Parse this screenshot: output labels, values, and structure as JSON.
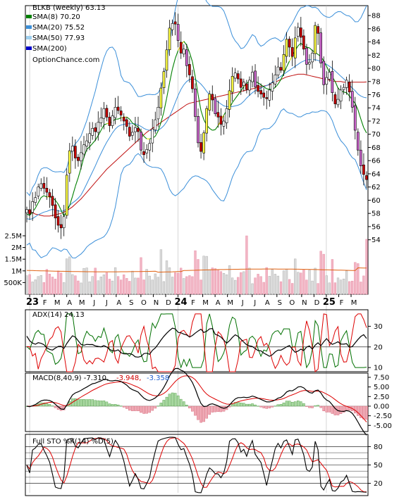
{
  "chart_data": [
    {
      "type": "candlestick",
      "panel": "price",
      "title": "BLKB (weekly) 63.13",
      "watermark": "OptionChance.com",
      "legend": [
        {
          "label": "SMA(8) 70.20",
          "color": "#008000"
        },
        {
          "label": "SMA(20) 75.52",
          "color": "#3b8fd9"
        },
        {
          "label": "SMA(50) 77.93",
          "color": "#9fd0ef"
        },
        {
          "label": "SMA(200)",
          "color": "#0000cc"
        }
      ],
      "y_ticks": [
        "88",
        "86",
        "84",
        "82",
        "80",
        "78",
        "76",
        "74",
        "72",
        "70",
        "68",
        "66",
        "64",
        "62",
        "60",
        "58",
        "56",
        "54"
      ],
      "ylim": [
        53,
        89.5
      ],
      "x_ticks": [
        {
          "label": "23",
          "bold": true
        },
        {
          "label": "F"
        },
        {
          "label": "M"
        },
        {
          "label": "A"
        },
        {
          "label": "M"
        },
        {
          "label": "J"
        },
        {
          "label": "J"
        },
        {
          "label": "A"
        },
        {
          "label": "S"
        },
        {
          "label": "O"
        },
        {
          "label": "N"
        },
        {
          "label": "D"
        },
        {
          "label": "24",
          "bold": true
        },
        {
          "label": "F"
        },
        {
          "label": "M"
        },
        {
          "label": "A"
        },
        {
          "label": "M"
        },
        {
          "label": "J"
        },
        {
          "label": "J"
        },
        {
          "label": "A"
        },
        {
          "label": "S"
        },
        {
          "label": "O"
        },
        {
          "label": "N"
        },
        {
          "label": "D"
        },
        {
          "label": "25",
          "bold": true
        },
        {
          "label": "F"
        },
        {
          "label": "M"
        }
      ],
      "close": [
        58.6,
        57.9,
        59.8,
        60.4,
        62.0,
        62.5,
        61.8,
        61.2,
        60.5,
        59.2,
        57.3,
        56.2,
        55.8,
        57.5,
        63.8,
        67.5,
        68.2,
        66.4,
        66.0,
        67.2,
        68.4,
        69.0,
        70.1,
        70.9,
        70.4,
        71.8,
        72.5,
        73.9,
        72.6,
        71.3,
        72.8,
        74.1,
        73.6,
        72.9,
        72.0,
        71.2,
        69.7,
        70.3,
        71.0,
        70.4,
        67.6,
        66.9,
        67.7,
        68.6,
        70.8,
        72.2,
        74.1,
        77.0,
        79.5,
        82.8,
        86.1,
        86.8,
        86.7,
        84.2,
        82.3,
        82.9,
        80.4,
        79.0,
        76.9,
        72.7,
        68.7,
        67.4,
        70.2,
        73.9,
        76.1,
        75.2,
        73.1,
        72.6,
        71.5,
        72.0,
        73.9,
        76.6,
        78.8,
        79.3,
        78.4,
        77.1,
        77.9,
        76.8,
        78.2,
        79.4,
        77.2,
        76.5,
        76.1,
        75.6,
        75.4,
        76.7,
        77.8,
        79.0,
        80.2,
        79.7,
        82.1,
        84.4,
        83.2,
        81.8,
        84.6,
        86.2,
        84.7,
        82.9,
        80.6,
        80.9,
        82.3,
        86.5,
        85.3,
        80.8,
        77.5,
        78.6,
        79.4,
        76.3,
        74.6,
        75.3,
        76.7,
        77.1,
        78.2,
        76.4,
        74.1,
        70.6,
        67.6,
        65.2,
        63.9,
        63.13
      ],
      "sma8": [
        57.9,
        57.7,
        58.2,
        58.8,
        59.6,
        60.4,
        60.7,
        60.5,
        60.5,
        60.4,
        60.0,
        59.4,
        58.5,
        57.6,
        58.3,
        59.2,
        60.6,
        62.1,
        63.4,
        64.9,
        66.5,
        67.7,
        68.1,
        68.6,
        69.1,
        69.8,
        70.6,
        71.4,
        71.6,
        71.7,
        71.9,
        72.3,
        72.3,
        72.5,
        72.6,
        72.6,
        72.3,
        71.7,
        71.4,
        71.1,
        70.4,
        69.7,
        69.3,
        69.3,
        69.4,
        69.7,
        70.5,
        71.8,
        73.4,
        75.5,
        77.8,
        79.9,
        81.5,
        82.7,
        83.5,
        84.1,
        83.5,
        82.4,
        81.0,
        78.7,
        76.0,
        73.6,
        72.2,
        71.4,
        70.9,
        70.6,
        70.7,
        71.3,
        72.1,
        72.9,
        73.6,
        74.0,
        74.8,
        75.4,
        76.0,
        76.6,
        77.2,
        77.7,
        78.1,
        78.1,
        78.0,
        77.8,
        77.5,
        77.2,
        76.9,
        76.8,
        76.8,
        77.1,
        77.6,
        78.3,
        79.2,
        80.2,
        81.1,
        81.9,
        82.7,
        83.4,
        83.8,
        83.4,
        83.2,
        83.1,
        82.7,
        82.4,
        82.1,
        81.8,
        81.1,
        80.3,
        79.4,
        78.7,
        78.0,
        77.0,
        76.6,
        76.4,
        76.3,
        75.8,
        75.2,
        74.7,
        73.7,
        72.3,
        71.0,
        70.2
      ],
      "sma20": [
        57.2,
        57.1,
        57.2,
        57.5,
        57.8,
        58.0,
        58.2,
        58.3,
        58.5,
        58.6,
        58.5,
        58.4,
        58.3,
        58.4,
        58.7,
        59.2,
        59.6,
        59.9,
        60.3,
        60.8,
        61.6,
        62.5,
        63.4,
        64.3,
        65.2,
        66.2,
        67.1,
        68.0,
        68.8,
        69.5,
        70.2,
        70.8,
        71.2,
        71.4,
        71.5,
        71.6,
        71.6,
        71.6,
        71.6,
        71.4,
        71.2,
        70.9,
        70.7,
        70.6,
        70.5,
        70.5,
        70.6,
        70.9,
        71.3,
        71.9,
        72.7,
        73.7,
        74.8,
        75.9,
        76.8,
        77.5,
        78.0,
        78.3,
        78.4,
        78.3,
        78.0,
        77.6,
        77.1,
        76.5,
        76.0,
        75.5,
        75.2,
        74.9,
        74.6,
        74.3,
        74.2,
        74.2,
        74.2,
        74.3,
        74.4,
        74.6,
        75.0,
        75.5,
        75.9,
        76.3,
        76.6,
        76.8,
        77.0,
        77.2,
        77.4,
        77.6,
        77.9,
        78.2,
        78.5,
        78.8,
        79.1,
        79.4,
        79.7,
        80.0,
        80.3,
        80.6,
        80.9,
        81.1,
        81.3,
        81.3,
        81.3,
        81.3,
        81.2,
        81.0,
        80.8,
        80.6,
        80.3,
        80.0,
        79.6,
        79.2,
        78.8,
        78.4,
        78.0,
        77.5,
        77.0,
        76.6,
        76.1,
        75.8,
        75.6,
        75.52
      ],
      "sma50": [
        58.5,
        58.3,
        58.1,
        57.9,
        57.8,
        57.7,
        57.6,
        57.6,
        57.6,
        57.7,
        57.8,
        57.9,
        58.0,
        58.2,
        58.4,
        58.7,
        59.0,
        59.4,
        59.8,
        60.2,
        60.7,
        61.2,
        61.7,
        62.2,
        62.7,
        63.2,
        63.7,
        64.2,
        64.7,
        65.1,
        65.5,
        65.9,
        66.3,
        66.7,
        67.1,
        67.5,
        67.9,
        68.3,
        68.7,
        69.1,
        69.5,
        69.9,
        70.3,
        70.6,
        70.9,
        71.2,
        71.5,
        71.8,
        72.1,
        72.4,
        72.7,
        73.0,
        73.3,
        73.6,
        73.9,
        74.2,
        74.5,
        74.7,
        74.8,
        74.9,
        75.0,
        75.1,
        75.2,
        75.3,
        75.4,
        75.5,
        75.6,
        75.7,
        75.8,
        75.9,
        76.0,
        76.1,
        76.2,
        76.3,
        76.4,
        76.5,
        76.6,
        76.7,
        76.8,
        76.9,
        77.0,
        77.1,
        77.2,
        77.3,
        77.4,
        77.5,
        77.7,
        77.9,
        78.1,
        78.3,
        78.5,
        78.7,
        78.8,
        78.9,
        79.0,
        79.1,
        79.1,
        79.1,
        79.0,
        78.9,
        78.8,
        78.7,
        78.6,
        78.5,
        78.4,
        78.3,
        78.2,
        78.1,
        78.0,
        78.0,
        78.0,
        77.9,
        77.9,
        77.9,
        77.9,
        77.9,
        77.9,
        77.9,
        77.9,
        77.93
      ]
    },
    {
      "type": "bar",
      "panel": "volume",
      "y_ticks": [
        "2.5M",
        "2M",
        "1.5M",
        "1M",
        "500K"
      ],
      "ylim": [
        0,
        2800000
      ]
    },
    {
      "type": "line",
      "panel": "adx",
      "label": "ADX(14) 24.13",
      "y_ticks": [
        "30",
        "20",
        "10"
      ],
      "ylim": [
        8,
        38
      ]
    },
    {
      "type": "line",
      "panel": "macd",
      "label": "MACD(8,40,9) -7.310,",
      "value_red": "-3.948,",
      "value_blue": "-3.358",
      "y_ticks": [
        "7.50",
        "5.00",
        "2.50",
        "0.00",
        "-2.50",
        "-5.00"
      ],
      "ylim": [
        -6.6,
        8.6
      ]
    },
    {
      "type": "line",
      "panel": "stochastic",
      "label": "Full STO %K(14) %D(5)",
      "y_ticks": [
        "80",
        "50",
        "20"
      ],
      "ylim": [
        0,
        100
      ]
    }
  ]
}
